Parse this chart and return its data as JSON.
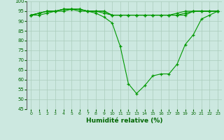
{
  "title": "",
  "xlabel": "Humidité relative (%)",
  "ylabel": "",
  "background_color": "#cce8e0",
  "grid_color": "#aaccbb",
  "line_color": "#009900",
  "marker_color": "#009900",
  "xmin": 0,
  "xmax": 23,
  "ymin": 45,
  "ymax": 100,
  "yticks": [
    45,
    50,
    55,
    60,
    65,
    70,
    75,
    80,
    85,
    90,
    95,
    100
  ],
  "xticks": [
    0,
    1,
    2,
    3,
    4,
    5,
    6,
    7,
    8,
    9,
    10,
    11,
    12,
    13,
    14,
    15,
    16,
    17,
    18,
    19,
    20,
    21,
    22,
    23
  ],
  "series": [
    {
      "x": [
        0,
        1,
        2,
        3,
        4,
        5,
        6,
        7,
        8,
        9,
        10,
        11,
        12,
        13,
        14,
        15,
        16,
        17,
        18,
        19,
        20,
        21,
        22,
        23
      ],
      "y": [
        93,
        93,
        94,
        95,
        95,
        96,
        95,
        95,
        94,
        92,
        89,
        77,
        58,
        53,
        57,
        62,
        63,
        63,
        68,
        78,
        83,
        91,
        93,
        95
      ]
    },
    {
      "x": [
        0,
        1,
        2,
        3,
        4,
        5,
        6,
        7,
        8,
        9,
        10,
        11,
        12,
        13,
        14,
        15,
        16,
        17,
        18,
        19,
        20,
        21,
        22,
        23
      ],
      "y": [
        93,
        94,
        95,
        95,
        96,
        96,
        96,
        95,
        95,
        95,
        93,
        93,
        93,
        93,
        93,
        93,
        93,
        93,
        93,
        93,
        95,
        95,
        95,
        95
      ]
    },
    {
      "x": [
        0,
        1,
        2,
        3,
        4,
        5,
        6,
        7,
        8,
        9,
        10,
        11,
        12,
        13,
        14,
        15,
        16,
        17,
        18,
        19,
        20,
        21,
        22,
        23
      ],
      "y": [
        93,
        94,
        95,
        95,
        96,
        96,
        96,
        95,
        95,
        95,
        93,
        93,
        93,
        93,
        93,
        93,
        93,
        93,
        93,
        94,
        95,
        95,
        95,
        95
      ]
    },
    {
      "x": [
        0,
        1,
        2,
        3,
        4,
        5,
        6,
        7,
        8,
        9,
        10,
        11,
        12,
        13,
        14,
        15,
        16,
        17,
        18,
        19,
        20,
        21,
        22,
        23
      ],
      "y": [
        93,
        94,
        95,
        95,
        96,
        96,
        96,
        95,
        95,
        94,
        93,
        93,
        93,
        93,
        93,
        93,
        93,
        93,
        94,
        95,
        95,
        95,
        95,
        95
      ]
    }
  ]
}
